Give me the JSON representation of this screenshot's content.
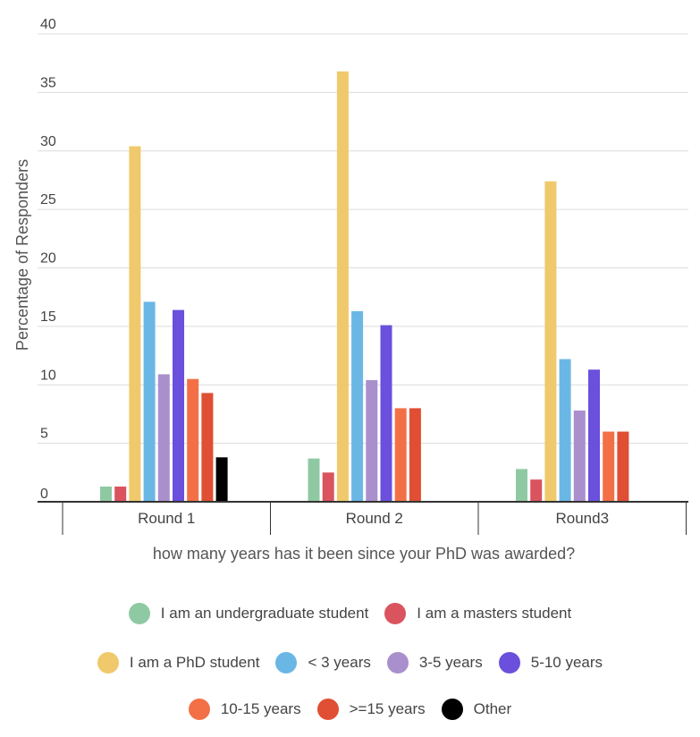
{
  "chart_data": {
    "type": "bar",
    "title": "",
    "xlabel": "how many years has it been since your PhD was awarded?",
    "ylabel": "Percentage of Responders",
    "ylim": [
      0,
      40
    ],
    "yticks": [
      0,
      5,
      10,
      15,
      20,
      25,
      30,
      35,
      40
    ],
    "grid": true,
    "legend_position": "bottom",
    "categories": [
      "Round 1",
      "Round 2",
      "Round3"
    ],
    "series": [
      {
        "name": "I am an undergraduate student",
        "color": "#8fc9a3",
        "values": [
          1.3,
          3.7,
          2.8
        ]
      },
      {
        "name": "I am a masters student",
        "color": "#d9545e",
        "values": [
          1.3,
          2.5,
          1.9
        ]
      },
      {
        "name": "I am a PhD student",
        "color": "#efc96b",
        "values": [
          30.4,
          36.8,
          27.4
        ]
      },
      {
        "name": "< 3 years",
        "color": "#6ab7e6",
        "values": [
          17.1,
          16.3,
          12.2
        ]
      },
      {
        "name": "3-5 years",
        "color": "#a98fcc",
        "values": [
          10.9,
          10.4,
          7.8
        ]
      },
      {
        "name": "5-10 years",
        "color": "#6a50dc",
        "values": [
          16.4,
          15.1,
          11.3
        ]
      },
      {
        "name": "10-15 years",
        "color": "#f37046",
        "values": [
          10.5,
          8.0,
          6.0
        ]
      },
      {
        "name": ">=15 years",
        "color": "#e04e33",
        "values": [
          9.3,
          8.0,
          6.0
        ]
      },
      {
        "name": "Other",
        "color": "#000000",
        "values": [
          3.8,
          0,
          0
        ]
      }
    ]
  },
  "legend_rows": [
    [
      0,
      1
    ],
    [
      2,
      3,
      4,
      5
    ],
    [
      6,
      7,
      8
    ]
  ]
}
